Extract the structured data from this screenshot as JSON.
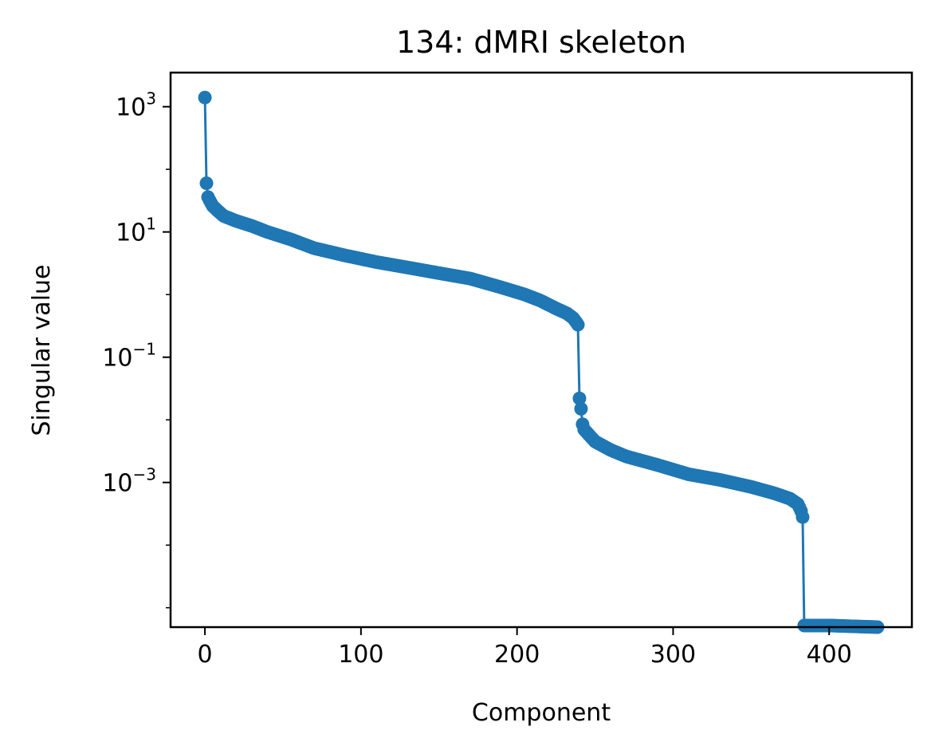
{
  "chart_data": {
    "type": "line",
    "title": "134: dMRI skeleton",
    "xlabel": "Component",
    "ylabel": "Singular value",
    "xlim": [
      -22,
      453
    ],
    "ylim": [
      4.9e-06,
      3500
    ],
    "yscale": "log",
    "xticks": [
      0,
      100,
      200,
      300,
      400
    ],
    "xtick_labels": [
      "0",
      "100",
      "200",
      "300",
      "400"
    ],
    "yticks": [
      {
        "value": 1000,
        "base": "10",
        "exp": "3"
      },
      {
        "value": 10,
        "base": "10",
        "exp": "1"
      },
      {
        "value": 0.1,
        "base": "10",
        "exp": "−1"
      },
      {
        "value": 0.001,
        "base": "10",
        "exp": "−3"
      }
    ],
    "grid": false,
    "marker": "circle",
    "series": [
      {
        "color": "#1f77b4",
        "anchors_x": [
          0,
          1,
          2,
          3,
          5,
          8,
          12,
          20,
          30,
          40,
          55,
          70,
          90,
          110,
          130,
          150,
          170,
          190,
          205,
          215,
          225,
          232,
          236,
          238,
          239,
          240,
          241,
          242,
          243,
          250,
          260,
          270,
          290,
          310,
          330,
          350,
          365,
          375,
          380,
          382,
          383,
          384,
          385,
          400,
          431
        ],
        "anchors_y": [
          1400,
          60,
          36,
          32,
          26,
          22,
          18,
          15,
          12.5,
          10,
          7.6,
          5.5,
          4.2,
          3.3,
          2.7,
          2.2,
          1.8,
          1.3,
          1.0,
          0.8,
          0.6,
          0.5,
          0.42,
          0.36,
          0.33,
          0.022,
          0.015,
          0.0085,
          0.007,
          0.0045,
          0.0033,
          0.0026,
          0.0019,
          0.00135,
          0.0011,
          0.00085,
          0.00067,
          0.00055,
          0.00045,
          0.00035,
          0.00028,
          5.2e-06,
          5.2e-06,
          5.2e-06,
          4.9e-06
        ]
      }
    ]
  }
}
